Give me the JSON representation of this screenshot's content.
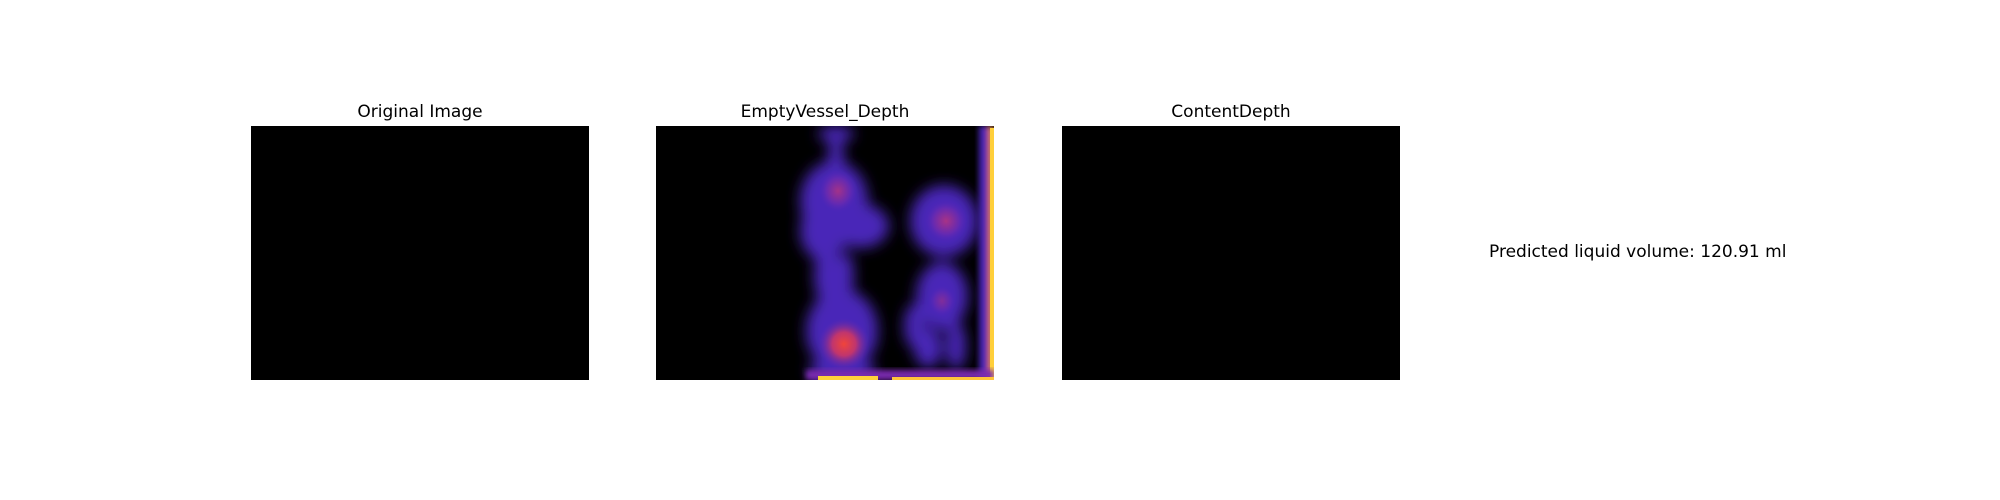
{
  "panels": [
    {
      "title": "Original Image"
    },
    {
      "title": "EmptyVessel_Depth"
    },
    {
      "title": "ContentDepth"
    }
  ],
  "result": {
    "text": "Predicted liquid volume: 120.91 ml"
  },
  "colors": {
    "background": "#ffffff",
    "image_fill": "#000000",
    "depth_low": "#4a26b8",
    "depth_mid": "#8a2fa8",
    "depth_high": "#e8423a",
    "depth_peak": "#ffd23a"
  }
}
